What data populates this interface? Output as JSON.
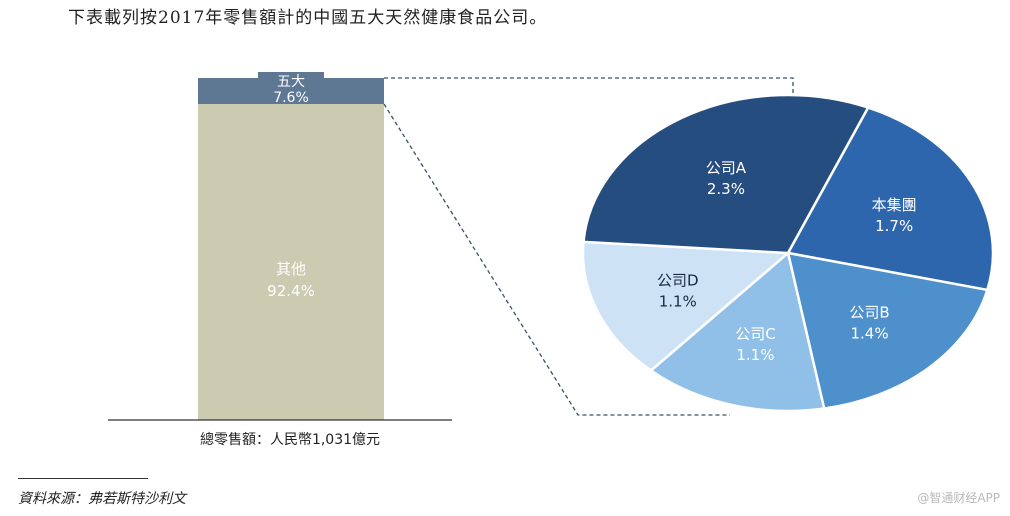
{
  "title": "下表載列按2017年零售額計的中國五大天然健康食品公司。",
  "source": "資料來源：弗若斯特沙利文",
  "watermark": "@智通财经APP",
  "chart_data": [
    {
      "type": "bar",
      "stacked": true,
      "xlabel": "總零售額：人民幣1,031億元",
      "segments": [
        {
          "name": "其他",
          "value": 92.4,
          "label": "92.4%",
          "color": "#cacbb1"
        },
        {
          "name": "五大",
          "value": 7.6,
          "label": "7.6%",
          "color": "#5e7894"
        }
      ],
      "ylim": [
        0,
        100
      ]
    },
    {
      "type": "pie",
      "slices": [
        {
          "name": "本集團",
          "value": 1.7,
          "label": "1.7%",
          "color": "#2e66ae"
        },
        {
          "name": "公司B",
          "value": 1.4,
          "label": "1.4%",
          "color": "#4e90cc"
        },
        {
          "name": "公司C",
          "value": 1.1,
          "label": "1.1%",
          "color": "#90c0e8"
        },
        {
          "name": "公司D",
          "value": 1.1,
          "label": "1.1%",
          "color": "#cde2f4"
        },
        {
          "name": "公司A",
          "value": 2.3,
          "label": "2.3%",
          "color": "#264d80"
        }
      ]
    }
  ]
}
